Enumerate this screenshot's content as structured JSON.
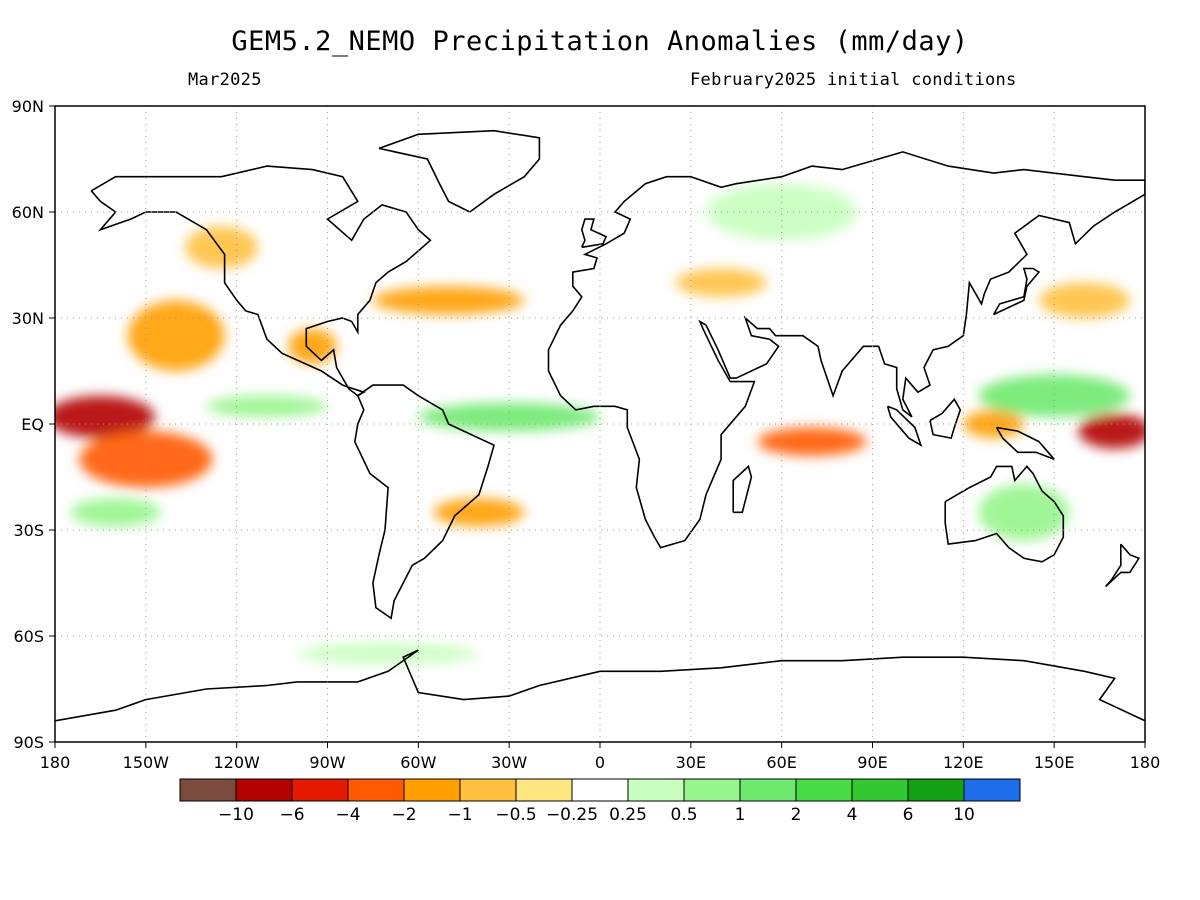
{
  "title": "GEM5.2_NEMO Precipitation Anomalies (mm/day)",
  "subtitle_left": "Mar2025",
  "subtitle_right": "February2025 initial conditions",
  "map": {
    "projection": "cylindrical-equidistant",
    "lon_range": [
      -180,
      180
    ],
    "lat_range": [
      -90,
      90
    ],
    "grid": "dotted",
    "coastlines": true
  },
  "lat_ticks": [
    {
      "lat": 90,
      "label": "90N"
    },
    {
      "lat": 60,
      "label": "60N"
    },
    {
      "lat": 30,
      "label": "30N"
    },
    {
      "lat": 0,
      "label": "EQ"
    },
    {
      "lat": -30,
      "label": "30S"
    },
    {
      "lat": -60,
      "label": "60S"
    },
    {
      "lat": -90,
      "label": "90S"
    }
  ],
  "lon_ticks": [
    {
      "lon": -180,
      "label": "180"
    },
    {
      "lon": -150,
      "label": "150W"
    },
    {
      "lon": -120,
      "label": "120W"
    },
    {
      "lon": -90,
      "label": "90W"
    },
    {
      "lon": -60,
      "label": "60W"
    },
    {
      "lon": -30,
      "label": "30W"
    },
    {
      "lon": 0,
      "label": "0"
    },
    {
      "lon": 30,
      "label": "30E"
    },
    {
      "lon": 60,
      "label": "60E"
    },
    {
      "lon": 90,
      "label": "90E"
    },
    {
      "lon": 120,
      "label": "120E"
    },
    {
      "lon": 150,
      "label": "150E"
    },
    {
      "lon": 180,
      "label": "180"
    }
  ],
  "colorbar": {
    "colors": [
      "#7a4b3c",
      "#b30000",
      "#e31a00",
      "#ff5a00",
      "#ff9f00",
      "#ffc040",
      "#ffe680",
      "#ffffff",
      "#c8ffbe",
      "#96f58c",
      "#6ee96e",
      "#46dc46",
      "#32c832",
      "#14a014",
      "#1e6eeb"
    ],
    "labels": [
      "−10",
      "−6",
      "−4",
      "−2",
      "−1",
      "−0.5",
      "−0.25",
      "0.25",
      "0.5",
      "1",
      "2",
      "4",
      "6",
      "10"
    ]
  },
  "anomaly_patches": [
    {
      "lon": -165,
      "lat": 2,
      "rx": 18,
      "ry": 6,
      "value": -6
    },
    {
      "lon": -150,
      "lat": -10,
      "rx": 22,
      "ry": 8,
      "value": -2
    },
    {
      "lon": -140,
      "lat": 25,
      "rx": 16,
      "ry": 10,
      "value": -1
    },
    {
      "lon": -125,
      "lat": 50,
      "rx": 12,
      "ry": 6,
      "value": -0.5
    },
    {
      "lon": -95,
      "lat": 22,
      "rx": 8,
      "ry": 5,
      "value": -1
    },
    {
      "lon": -50,
      "lat": 35,
      "rx": 25,
      "ry": 4,
      "value": -1
    },
    {
      "lon": -40,
      "lat": -25,
      "rx": 15,
      "ry": 4,
      "value": -1
    },
    {
      "lon": 40,
      "lat": 40,
      "rx": 15,
      "ry": 4,
      "value": -0.5
    },
    {
      "lon": 70,
      "lat": -5,
      "rx": 18,
      "ry": 4,
      "value": -2
    },
    {
      "lon": 130,
      "lat": 0,
      "rx": 10,
      "ry": 4,
      "value": -1
    },
    {
      "lon": 160,
      "lat": 35,
      "rx": 15,
      "ry": 5,
      "value": -0.5
    },
    {
      "lon": 170,
      "lat": -2,
      "rx": 12,
      "ry": 5,
      "value": -6
    },
    {
      "lon": -30,
      "lat": 2,
      "rx": 30,
      "ry": 4,
      "value": 2
    },
    {
      "lon": -110,
      "lat": 5,
      "rx": 20,
      "ry": 3,
      "value": 1
    },
    {
      "lon": 150,
      "lat": 8,
      "rx": 25,
      "ry": 6,
      "value": 2
    },
    {
      "lon": 140,
      "lat": -25,
      "rx": 15,
      "ry": 8,
      "value": 1
    },
    {
      "lon": 60,
      "lat": 60,
      "rx": 25,
      "ry": 8,
      "value": 0.5
    },
    {
      "lon": -160,
      "lat": -25,
      "rx": 15,
      "ry": 4,
      "value": 1
    },
    {
      "lon": -70,
      "lat": -65,
      "rx": 30,
      "ry": 3,
      "value": 0.5
    }
  ]
}
